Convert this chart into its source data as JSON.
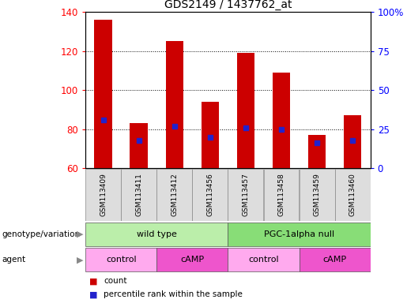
{
  "title": "GDS2149 / 1437762_at",
  "samples": [
    "GSM113409",
    "GSM113411",
    "GSM113412",
    "GSM113456",
    "GSM113457",
    "GSM113458",
    "GSM113459",
    "GSM113460"
  ],
  "counts": [
    136,
    83,
    125,
    94,
    119,
    109,
    77,
    87
  ],
  "percentile_ranks": [
    31,
    18,
    27,
    20,
    26,
    25,
    16,
    18
  ],
  "ymin": 60,
  "ymax": 140,
  "yticks": [
    60,
    80,
    100,
    120,
    140
  ],
  "right_yticks": [
    0,
    25,
    50,
    75,
    100
  ],
  "right_ytick_labels": [
    "0",
    "25",
    "50",
    "75",
    "100%"
  ],
  "bar_color": "#cc0000",
  "percentile_color": "#2222cc",
  "genotype_groups": [
    {
      "label": "wild type",
      "start": 0,
      "end": 4,
      "color": "#bbeeaa"
    },
    {
      "label": "PGC-1alpha null",
      "start": 4,
      "end": 8,
      "color": "#88dd77"
    }
  ],
  "agent_groups": [
    {
      "label": "control",
      "start": 0,
      "end": 2,
      "color": "#ffaaee"
    },
    {
      "label": "cAMP",
      "start": 2,
      "end": 4,
      "color": "#ee55cc"
    },
    {
      "label": "control",
      "start": 4,
      "end": 6,
      "color": "#ffaaee"
    },
    {
      "label": "cAMP",
      "start": 6,
      "end": 8,
      "color": "#ee55cc"
    }
  ],
  "legend_count_color": "#cc0000",
  "legend_pct_color": "#2222cc",
  "left_label_geno": "genotype/variation",
  "left_label_agent": "agent"
}
